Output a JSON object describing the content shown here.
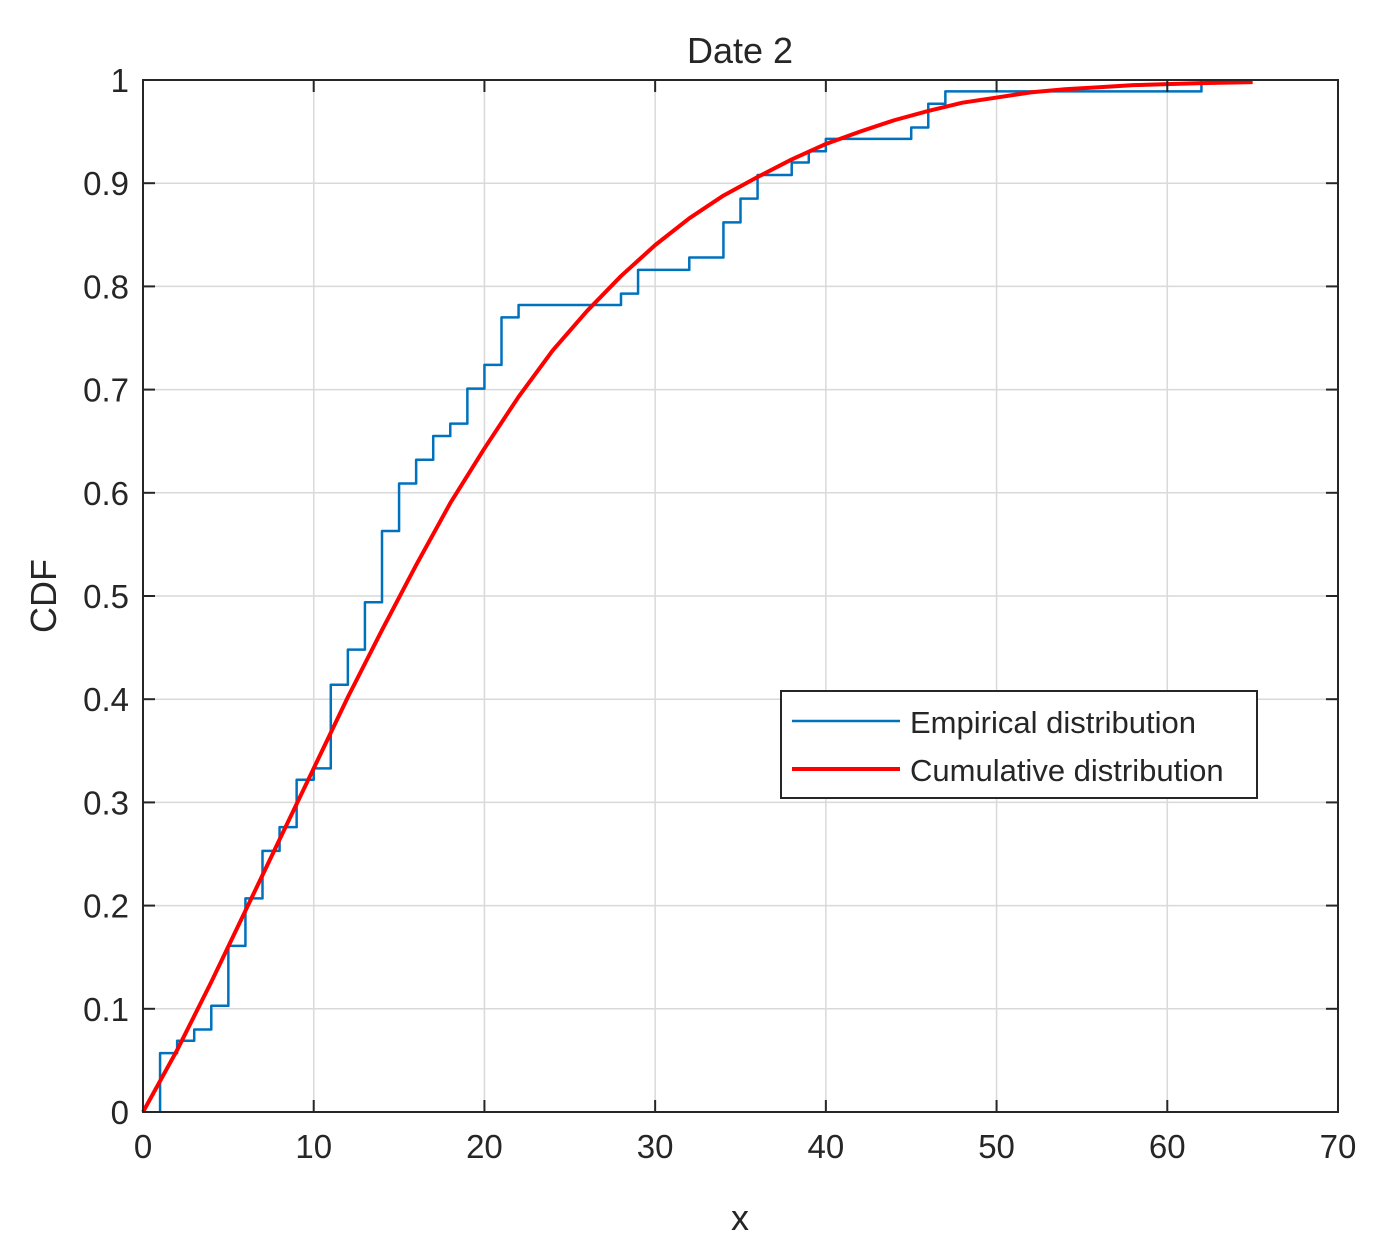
{
  "chart_data": {
    "type": "line",
    "title": "Date 2",
    "xlabel": "x",
    "ylabel": "CDF",
    "xlim": [
      0,
      70
    ],
    "ylim": [
      0,
      1
    ],
    "xticks": [
      "0",
      "10",
      "20",
      "30",
      "40",
      "50",
      "60",
      "70"
    ],
    "yticks": [
      "0",
      "0.1",
      "0.2",
      "0.3",
      "0.4",
      "0.5",
      "0.6",
      "0.7",
      "0.8",
      "0.9",
      "1"
    ],
    "grid": true,
    "legend_position": "middle-right",
    "series": [
      {
        "name": "Empirical distribution",
        "style": "step",
        "color": "#0072BD",
        "x": [
          1,
          2,
          3,
          4,
          5,
          6,
          7,
          8,
          9,
          10,
          11,
          12,
          13,
          14,
          15,
          16,
          17,
          18,
          19,
          20,
          21,
          22,
          28,
          29,
          32,
          34,
          35,
          36,
          38,
          39,
          40,
          45,
          46,
          47,
          62
        ],
        "y": [
          0.057,
          0.069,
          0.08,
          0.103,
          0.161,
          0.207,
          0.253,
          0.276,
          0.322,
          0.333,
          0.414,
          0.448,
          0.494,
          0.563,
          0.609,
          0.632,
          0.655,
          0.667,
          0.701,
          0.724,
          0.77,
          0.782,
          0.793,
          0.816,
          0.828,
          0.862,
          0.885,
          0.908,
          0.92,
          0.931,
          0.943,
          0.954,
          0.977,
          0.989,
          1.0
        ]
      },
      {
        "name": "Cumulative distribution",
        "style": "line",
        "color": "#FF0000",
        "x": [
          0,
          2,
          4,
          6,
          8,
          10,
          12,
          14,
          16,
          18,
          20,
          22,
          24,
          26,
          28,
          30,
          32,
          34,
          36,
          38,
          40,
          42,
          44,
          46,
          48,
          50,
          52,
          54,
          56,
          58,
          60,
          62,
          65
        ],
        "y": [
          0.0,
          0.06,
          0.126,
          0.195,
          0.264,
          0.333,
          0.402,
          0.467,
          0.53,
          0.59,
          0.643,
          0.693,
          0.738,
          0.776,
          0.81,
          0.84,
          0.866,
          0.888,
          0.906,
          0.923,
          0.938,
          0.95,
          0.961,
          0.97,
          0.978,
          0.983,
          0.988,
          0.991,
          0.993,
          0.995,
          0.996,
          0.997,
          0.998
        ]
      }
    ]
  }
}
